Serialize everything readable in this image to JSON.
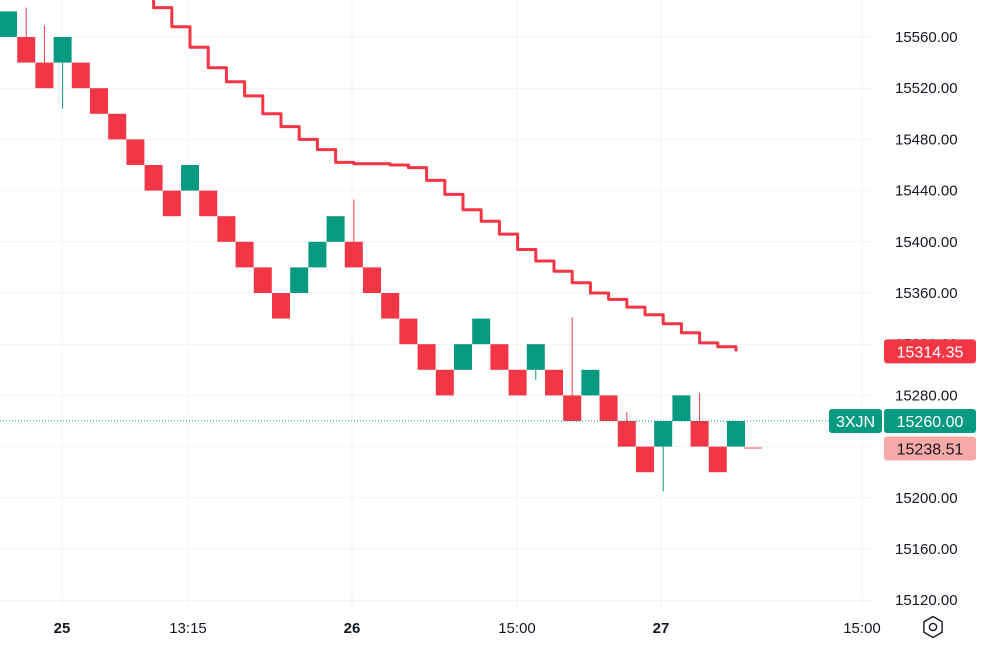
{
  "chart_data": {
    "type": "renko",
    "y_axis": {
      "ticks": [
        "15560.00",
        "15520.00",
        "15480.00",
        "15440.00",
        "15400.00",
        "15360.00",
        "15320.00",
        "15280.00",
        "15240.00",
        "15200.00",
        "15160.00",
        "15120.00"
      ],
      "ylim": [
        15117,
        15588
      ]
    },
    "x_axis": {
      "ticks": [
        {
          "label": "25",
          "bold": true
        },
        {
          "label": "13:15",
          "bold": false
        },
        {
          "label": "26",
          "bold": true
        },
        {
          "label": "15:00",
          "bold": false
        },
        {
          "label": "27",
          "bold": true
        },
        {
          "label": "15:00",
          "bold": false
        }
      ]
    },
    "brick_size": 20,
    "bricks": [
      {
        "dir": "up",
        "open": 15560,
        "close": 15580
      },
      {
        "dir": "down",
        "open": 15560,
        "close": 15540
      },
      {
        "dir": "down",
        "open": 15540,
        "close": 15520
      },
      {
        "dir": "up",
        "open": 15540,
        "close": 15560
      },
      {
        "dir": "down",
        "open": 15540,
        "close": 15520
      },
      {
        "dir": "down",
        "open": 15520,
        "close": 15500
      },
      {
        "dir": "down",
        "open": 15500,
        "close": 15480
      },
      {
        "dir": "down",
        "open": 15480,
        "close": 15460
      },
      {
        "dir": "down",
        "open": 15460,
        "close": 15440
      },
      {
        "dir": "down",
        "open": 15440,
        "close": 15420
      },
      {
        "dir": "up",
        "open": 15440,
        "close": 15460
      },
      {
        "dir": "down",
        "open": 15440,
        "close": 15420
      },
      {
        "dir": "down",
        "open": 15420,
        "close": 15400
      },
      {
        "dir": "down",
        "open": 15400,
        "close": 15380
      },
      {
        "dir": "down",
        "open": 15380,
        "close": 15360
      },
      {
        "dir": "down",
        "open": 15360,
        "close": 15340
      },
      {
        "dir": "up",
        "open": 15360,
        "close": 15380
      },
      {
        "dir": "up",
        "open": 15380,
        "close": 15400
      },
      {
        "dir": "up",
        "open": 15400,
        "close": 15420
      },
      {
        "dir": "down",
        "open": 15400,
        "close": 15380
      },
      {
        "dir": "down",
        "open": 15380,
        "close": 15360
      },
      {
        "dir": "down",
        "open": 15360,
        "close": 15340
      },
      {
        "dir": "down",
        "open": 15340,
        "close": 15320
      },
      {
        "dir": "down",
        "open": 15320,
        "close": 15300
      },
      {
        "dir": "down",
        "open": 15300,
        "close": 15280
      },
      {
        "dir": "up",
        "open": 15300,
        "close": 15320
      },
      {
        "dir": "up",
        "open": 15320,
        "close": 15340
      },
      {
        "dir": "down",
        "open": 15320,
        "close": 15300
      },
      {
        "dir": "down",
        "open": 15300,
        "close": 15280
      },
      {
        "dir": "up",
        "open": 15300,
        "close": 15320
      },
      {
        "dir": "down",
        "open": 15300,
        "close": 15280
      },
      {
        "dir": "down",
        "open": 15280,
        "close": 15260
      },
      {
        "dir": "up",
        "open": 15280,
        "close": 15300
      },
      {
        "dir": "down",
        "open": 15280,
        "close": 15260
      },
      {
        "dir": "down",
        "open": 15260,
        "close": 15240
      },
      {
        "dir": "down",
        "open": 15240,
        "close": 15220
      },
      {
        "dir": "up",
        "open": 15240,
        "close": 15260
      },
      {
        "dir": "up",
        "open": 15260,
        "close": 15280
      },
      {
        "dir": "down",
        "open": 15260,
        "close": 15240
      },
      {
        "dir": "down",
        "open": 15240,
        "close": 15220
      },
      {
        "dir": "up",
        "open": 15240,
        "close": 15260
      }
    ],
    "wicks": [
      {
        "brick": 1,
        "high": 15583
      },
      {
        "brick": 2,
        "high": 15569
      },
      {
        "brick": 3,
        "low": 15504
      },
      {
        "brick": 14,
        "high": 15373
      },
      {
        "brick": 19,
        "high": 15433
      },
      {
        "brick": 29,
        "low": 15292
      },
      {
        "brick": 31,
        "high": 15341
      },
      {
        "brick": 34,
        "low": 15267
      },
      {
        "brick": 36,
        "low": 15205
      },
      {
        "brick": 38,
        "high": 15282
      }
    ],
    "ma_line": {
      "color": "#f23645",
      "points": [
        [
          8,
          15591
        ],
        [
          8,
          15583
        ],
        [
          9,
          15583
        ],
        [
          9,
          15568
        ],
        [
          10,
          15568
        ],
        [
          10,
          15552
        ],
        [
          11,
          15552
        ],
        [
          11,
          15536
        ],
        [
          12,
          15536
        ],
        [
          12,
          15525
        ],
        [
          13,
          15525
        ],
        [
          13,
          15514
        ],
        [
          14,
          15514
        ],
        [
          14,
          15500
        ],
        [
          15,
          15500
        ],
        [
          15,
          15490
        ],
        [
          16,
          15490
        ],
        [
          16,
          15480
        ],
        [
          17,
          15480
        ],
        [
          17,
          15472
        ],
        [
          18,
          15472
        ],
        [
          18,
          15462
        ],
        [
          19,
          15462
        ],
        [
          19,
          15461
        ],
        [
          21,
          15461
        ],
        [
          21,
          15460
        ],
        [
          22,
          15460
        ],
        [
          22,
          15458
        ],
        [
          23,
          15458
        ],
        [
          23,
          15448
        ],
        [
          24,
          15448
        ],
        [
          24,
          15437
        ],
        [
          25,
          15437
        ],
        [
          25,
          15425
        ],
        [
          26,
          15425
        ],
        [
          26,
          15416
        ],
        [
          27,
          15416
        ],
        [
          27,
          15406
        ],
        [
          28,
          15406
        ],
        [
          28,
          15394
        ],
        [
          29,
          15394
        ],
        [
          29,
          15385
        ],
        [
          30,
          15385
        ],
        [
          30,
          15377
        ],
        [
          31,
          15377
        ],
        [
          31,
          15368
        ],
        [
          32,
          15368
        ],
        [
          32,
          15360
        ],
        [
          33,
          15360
        ],
        [
          33,
          15355
        ],
        [
          34,
          15355
        ],
        [
          34,
          15349
        ],
        [
          35,
          15349
        ],
        [
          35,
          15343
        ],
        [
          36,
          15343
        ],
        [
          36,
          15336
        ],
        [
          37,
          15336
        ],
        [
          37,
          15329
        ],
        [
          38,
          15329
        ],
        [
          38,
          15321
        ],
        [
          39,
          15321
        ],
        [
          39,
          15318
        ],
        [
          40,
          15318
        ],
        [
          40,
          15314.35
        ]
      ]
    },
    "price_tags": [
      {
        "label": "",
        "value": "15314.35",
        "price": 15314.35,
        "bg": "#f23645",
        "text_color": "#ffffff"
      },
      {
        "label": "3XJN",
        "value": "15260.00",
        "price": 15260,
        "bg": "#089981",
        "text_color": "#ffffff"
      },
      {
        "label": "",
        "value": "15238.51",
        "price": 15238.51,
        "bg": "#f7a9a7",
        "text_color": "#131722"
      }
    ],
    "current_price": 15260,
    "colors": {
      "up": "#089981",
      "down": "#f23645",
      "grid": "#f0f3fa",
      "axis_text": "#131722"
    }
  },
  "icons": {
    "settings": "gear-icon"
  }
}
